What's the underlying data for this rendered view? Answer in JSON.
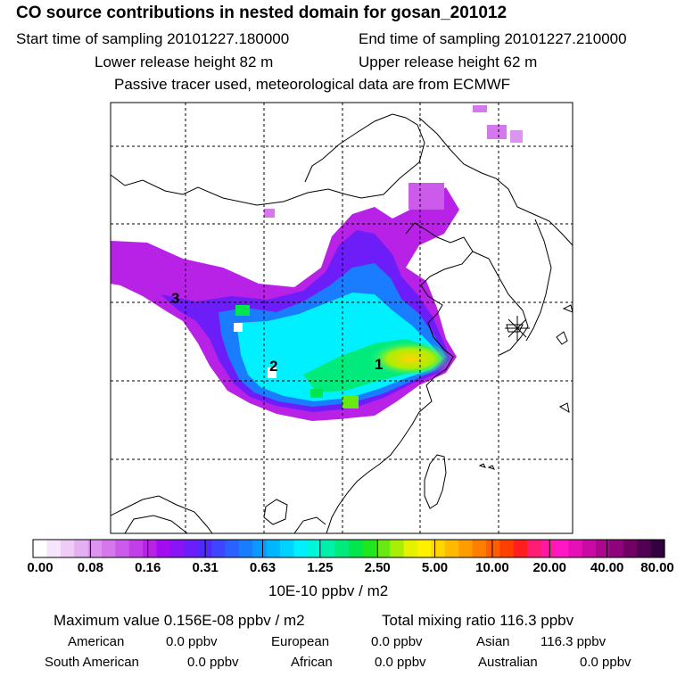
{
  "header": {
    "title": "CO  source contributions in nested domain for gosan_201012",
    "start_time": "Start time of sampling 20101227.180000",
    "end_time": "End time of sampling 20101227.210000",
    "lower_release": "Lower release height   82 m",
    "upper_release": "Upper release height   62 m",
    "note": "Passive tracer used, meteorological data are from ECMWF"
  },
  "chart_data": {
    "type": "heatmap",
    "title": "CO  source contributions in nested domain for gosan_201012",
    "colorbar": {
      "tick_labels": [
        "0.00",
        "0.08",
        "0.16",
        "0.31",
        "0.63",
        "1.25",
        "2.50",
        "5.00",
        "10.00",
        "20.00",
        "40.00",
        "80.00"
      ],
      "units": "10E-10 ppbv / m2",
      "colors": [
        "#ffffff",
        "#f7e6fb",
        "#efccf7",
        "#e5b0f3",
        "#dd93f0",
        "#d577ed",
        "#cc5aea",
        "#c23ee8",
        "#b722e6",
        "#a30bf0",
        "#8a14f5",
        "#6d1ef8",
        "#5029fb",
        "#3d45fd",
        "#2b62ff",
        "#1a7dff",
        "#0a99ff",
        "#00b6ff",
        "#00d3ff",
        "#00f0ff",
        "#00f5d9",
        "#00f0aa",
        "#00eb7b",
        "#00e64c",
        "#1fe61f",
        "#66ea11",
        "#a9ee06",
        "#e5f100",
        "#fff000",
        "#ffd500",
        "#ffb900",
        "#ff9c00",
        "#ff7e00",
        "#ff5f00",
        "#ff3f00",
        "#ff1f1f",
        "#ff1d73",
        "#ff1aa1",
        "#ff17c5",
        "#e60fb8",
        "#c90aa4",
        "#ac078f",
        "#8e047a",
        "#700266",
        "#520152",
        "#34003f"
      ]
    },
    "labels": [
      {
        "id": "1",
        "value": "1"
      },
      {
        "id": "2",
        "value": "2"
      },
      {
        "id": "3",
        "value": "3"
      }
    ],
    "receptor": "Gosan"
  },
  "stats": {
    "maximum": "Maximum value  0.156E-08 ppbv / m2",
    "total_mixing": "Total mixing ratio       116.3 ppbv",
    "american_label": "American",
    "american_val": "0.0 ppbv",
    "european_label": "European",
    "european_val": "0.0 ppbv",
    "asian_label": "Asian",
    "asian_val": "116.3 ppbv",
    "south_american_label": "South American",
    "south_american_val": "0.0 ppbv",
    "african_label": "African",
    "african_val": "0.0 ppbv",
    "australian_label": "Australian",
    "australian_val": "0.0 ppbv"
  }
}
